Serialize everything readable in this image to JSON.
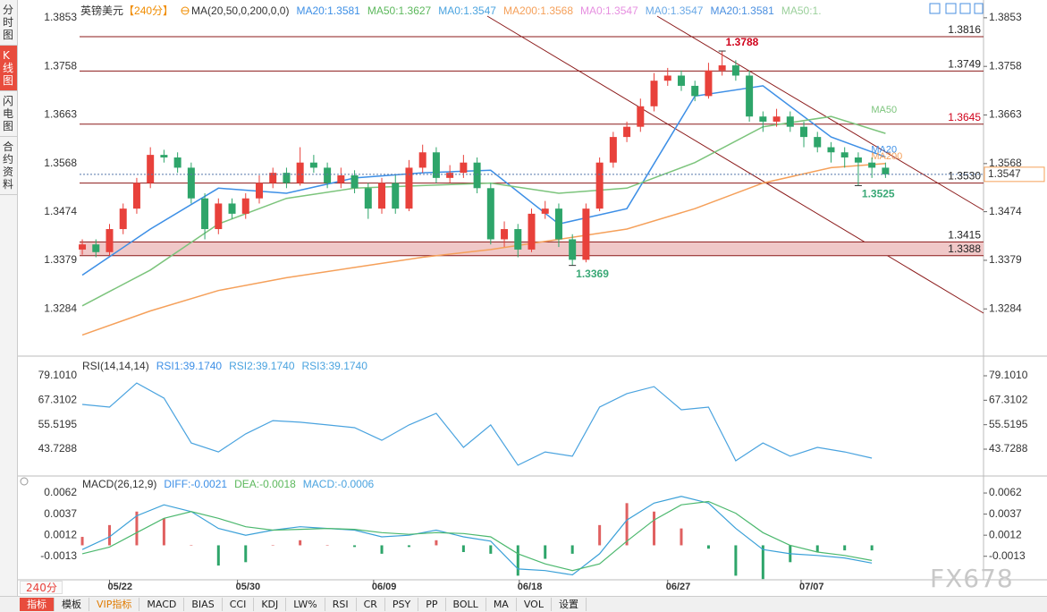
{
  "sidebar": [
    "分时图",
    "K线图",
    "闪电图",
    "合约资料"
  ],
  "chart_data": [
    {
      "type": "candlestick",
      "title": "英镑美元",
      "period": "【240分】",
      "indicator": "MA(20,50,0,200,0,0)",
      "header_items": [
        {
          "text": "MA20:1.3581",
          "color": "#3d8fe6"
        },
        {
          "text": "MA50:1.3627",
          "color": "#5cb85c"
        },
        {
          "text": "MA0:1.3547",
          "color": "#4aa3df"
        },
        {
          "text": "MA200:1.3568",
          "color": "#f5a05a"
        },
        {
          "text": "MA0:1.3547",
          "color": "#e68fe0"
        },
        {
          "text": "MA0:1.3547",
          "color": "#6aa9e6"
        },
        {
          "text": "MA20:1.3581",
          "color": "#4a8fe0"
        },
        {
          "text": "MA50:1.",
          "color": "#9bd09b"
        }
      ],
      "xlim": [
        -0.2,
        66.2
      ],
      "xticks": [
        {
          "value": 2,
          "label": "05/22"
        },
        {
          "value": 11.4,
          "label": "05/30"
        },
        {
          "value": 21.4,
          "label": "06/09"
        },
        {
          "value": 32.1,
          "label": "06/18"
        },
        {
          "value": 43,
          "label": "06/27"
        },
        {
          "value": 52.8,
          "label": "07/07"
        }
      ],
      "ylim": [
        1.3197,
        1.3879
      ],
      "yticks": [
        1.3853,
        1.3758,
        1.3663,
        1.3568,
        1.3474,
        1.3379,
        1.3284
      ],
      "up_color": "#e8413b",
      "down_color": "#2ea56a",
      "candles": {
        "open": [
          1.34,
          1.341,
          1.3395,
          1.344,
          1.348,
          1.353,
          1.3585,
          1.358,
          1.356,
          1.35,
          1.344,
          1.349,
          1.347,
          1.35,
          1.353,
          1.355,
          1.353,
          1.357,
          1.356,
          1.353,
          1.3545,
          1.352,
          1.348,
          1.353,
          1.348,
          1.356,
          1.359,
          1.354,
          1.355,
          1.357,
          1.352,
          1.342,
          1.344,
          1.34,
          1.347,
          1.348,
          1.342,
          1.338,
          1.348,
          1.357,
          1.362,
          1.364,
          1.368,
          1.373,
          1.374,
          1.372,
          1.37,
          1.375,
          1.376,
          1.374,
          1.366,
          1.365,
          1.366,
          1.364,
          1.362,
          1.36,
          1.359,
          1.358,
          1.357,
          1.356
        ],
        "high": [
          1.342,
          1.342,
          1.345,
          1.349,
          1.354,
          1.36,
          1.3595,
          1.359,
          1.357,
          1.351,
          1.35,
          1.35,
          1.351,
          1.3545,
          1.356,
          1.356,
          1.36,
          1.3585,
          1.357,
          1.356,
          1.3555,
          1.353,
          1.354,
          1.3545,
          1.3575,
          1.3605,
          1.36,
          1.3565,
          1.3585,
          1.358,
          1.353,
          1.3455,
          1.345,
          1.348,
          1.3495,
          1.349,
          1.343,
          1.349,
          1.358,
          1.363,
          1.365,
          1.3695,
          1.3745,
          1.3755,
          1.375,
          1.373,
          1.3765,
          1.3788,
          1.377,
          1.375,
          1.367,
          1.3675,
          1.367,
          1.365,
          1.363,
          1.361,
          1.36,
          1.359,
          1.358,
          1.357
        ],
        "low": [
          1.339,
          1.3385,
          1.3388,
          1.343,
          1.347,
          1.352,
          1.357,
          1.355,
          1.349,
          1.342,
          1.343,
          1.346,
          1.346,
          1.349,
          1.352,
          1.352,
          1.3525,
          1.355,
          1.352,
          1.352,
          1.351,
          1.346,
          1.347,
          1.347,
          1.3475,
          1.355,
          1.353,
          1.353,
          1.354,
          1.351,
          1.341,
          1.3405,
          1.3385,
          1.3395,
          1.346,
          1.3405,
          1.3369,
          1.3375,
          1.3475,
          1.356,
          1.361,
          1.363,
          1.367,
          1.372,
          1.371,
          1.369,
          1.3695,
          1.374,
          1.373,
          1.365,
          1.363,
          1.364,
          1.363,
          1.36,
          1.359,
          1.357,
          1.356,
          1.3525,
          1.354,
          1.354
        ],
        "close": [
          1.341,
          1.3395,
          1.344,
          1.348,
          1.353,
          1.3585,
          1.358,
          1.356,
          1.35,
          1.344,
          1.349,
          1.347,
          1.35,
          1.353,
          1.355,
          1.353,
          1.357,
          1.356,
          1.353,
          1.3545,
          1.352,
          1.348,
          1.353,
          1.348,
          1.356,
          1.359,
          1.354,
          1.355,
          1.357,
          1.352,
          1.342,
          1.344,
          1.34,
          1.347,
          1.348,
          1.342,
          1.338,
          1.348,
          1.357,
          1.362,
          1.364,
          1.368,
          1.373,
          1.374,
          1.372,
          1.37,
          1.375,
          1.376,
          1.374,
          1.366,
          1.365,
          1.366,
          1.364,
          1.362,
          1.36,
          1.359,
          1.358,
          1.357,
          1.356,
          1.3547
        ]
      },
      "series": [
        {
          "name": "MA20",
          "color": "#3d8fe6",
          "x": [
            0,
            5,
            10,
            15,
            20,
            25,
            30,
            35,
            40,
            45,
            50,
            55,
            59
          ],
          "values": [
            1.335,
            1.344,
            1.352,
            1.351,
            1.354,
            1.355,
            1.3555,
            1.345,
            1.348,
            1.37,
            1.372,
            1.362,
            1.3581
          ]
        },
        {
          "name": "MA50",
          "color": "#7cc47c",
          "x": [
            0,
            5,
            10,
            15,
            20,
            25,
            30,
            35,
            40,
            45,
            50,
            55,
            59
          ],
          "values": [
            1.329,
            1.336,
            1.345,
            1.35,
            1.352,
            1.3525,
            1.353,
            1.351,
            1.352,
            1.357,
            1.364,
            1.366,
            1.3627
          ]
        },
        {
          "name": "MA200",
          "color": "#f5a05a",
          "x": [
            0,
            5,
            10,
            15,
            20,
            25,
            30,
            35,
            40,
            45,
            50,
            55,
            59
          ],
          "values": [
            1.3233,
            1.328,
            1.332,
            1.3345,
            1.3365,
            1.3385,
            1.34,
            1.342,
            1.344,
            1.348,
            1.353,
            1.356,
            1.3568
          ]
        }
      ],
      "levels": [
        {
          "value": 1.3816,
          "color": "#222222"
        },
        {
          "value": 1.3749,
          "color": "#222222"
        },
        {
          "value": 1.3645,
          "color": "#d0021b"
        },
        {
          "value": 1.353,
          "label": "1.3530",
          "color": "#222222"
        },
        {
          "value": 1.3415,
          "color": "#222222"
        },
        {
          "value": 1.3388,
          "color": "#222222"
        }
      ],
      "level_line_color": "#8b1a1a",
      "zone": [
        1.3388,
        1.3415
      ],
      "zone_color": "#f0c8c8",
      "annotations": [
        {
          "x": 47,
          "value": 1.3788,
          "color": "#d0021b",
          "position": "above"
        },
        {
          "x": 57,
          "value": 1.3525,
          "color": "#3aa876",
          "position": "below"
        },
        {
          "x": 36,
          "value": 1.3369,
          "color": "#3aa876",
          "position": "below"
        }
      ],
      "last_color": "#f5a05a"
    },
    {
      "type": "line",
      "title": "RSI(14,14,14)",
      "header_items": [
        {
          "text": "RSI1:39.1740",
          "color": "#3d8fe6"
        },
        {
          "text": "RSI2:39.1740",
          "color": "#4aa3df"
        },
        {
          "text": "RSI3:39.1740",
          "color": "#4aa3df"
        }
      ],
      "ylim": [
        31.65,
        87.73
      ],
      "yticks": [
        {
          "value": 79.101,
          "label": "79.1010"
        },
        67.3102,
        55.5195,
        43.7288
      ],
      "series": [
        {
          "color": "#4aa3df",
          "x": [
            0,
            2,
            4,
            6,
            8,
            10,
            12,
            14,
            16,
            18,
            20,
            22,
            24,
            26,
            28,
            30,
            32,
            34,
            36,
            38,
            40,
            42,
            44,
            46,
            48,
            50,
            52,
            54,
            56,
            58
          ],
          "values": [
            65.3,
            64,
            75.6,
            68.3,
            46.7,
            42.4,
            51.1,
            57.5,
            56.7,
            55.4,
            54.1,
            48,
            55.4,
            61,
            44.6,
            55.4,
            36,
            42.4,
            40.3,
            64,
            70.5,
            73.9,
            62.7,
            64,
            38.1,
            46.7,
            40.3,
            44.6,
            42.4,
            39.4
          ]
        }
      ]
    },
    {
      "type": "macd",
      "title": "MACD(26,12,9)",
      "header_items": [
        {
          "text": "DIFF:-0.0021",
          "color": "#3d8fe6"
        },
        {
          "text": "DEA:-0.0018",
          "color": "#5cb85c"
        },
        {
          "text": "MACD:-0.0006",
          "color": "#4aa3df"
        }
      ],
      "ylim": [
        -0.0043,
        0.0079
      ],
      "yticks": [
        0.0062,
        0.0037,
        0.0012,
        -0.0013
      ],
      "series": [
        {
          "color": "#3aa0d8",
          "x": [
            0,
            2,
            4,
            6,
            8,
            10,
            12,
            14,
            16,
            18,
            20,
            22,
            24,
            26,
            28,
            30,
            32,
            34,
            36,
            38,
            40,
            42,
            44,
            46,
            48,
            50,
            52,
            54,
            56,
            58
          ],
          "values": [
            -0.0005,
            0.001,
            0.0035,
            0.0048,
            0.004,
            0.002,
            0.0012,
            0.0018,
            0.0022,
            0.002,
            0.0018,
            0.001,
            0.0012,
            0.0018,
            0.001,
            0.0005,
            -0.0028,
            -0.003,
            -0.0035,
            -0.001,
            0.003,
            0.005,
            0.0058,
            0.005,
            0.002,
            -0.0005,
            -0.001,
            -0.0012,
            -0.0015,
            -0.0021
          ]
        },
        {
          "color": "#4cb86e",
          "x": [
            0,
            2,
            4,
            6,
            8,
            10,
            12,
            14,
            16,
            18,
            20,
            22,
            24,
            26,
            28,
            30,
            32,
            34,
            36,
            38,
            40,
            42,
            44,
            46,
            48,
            50,
            52,
            54,
            56,
            58
          ],
          "values": [
            -0.001,
            -0.0002,
            0.0015,
            0.0032,
            0.004,
            0.0032,
            0.0022,
            0.0018,
            0.0019,
            0.002,
            0.0019,
            0.0015,
            0.0013,
            0.0015,
            0.0014,
            0.001,
            -0.001,
            -0.0022,
            -0.003,
            -0.0022,
            0.0005,
            0.003,
            0.0048,
            0.0052,
            0.0038,
            0.0015,
            0.0,
            -0.0008,
            -0.0012,
            -0.0018
          ]
        }
      ],
      "histogram": {
        "up_color": "#e06060",
        "down_color": "#2ea56a",
        "x": [
          0,
          2,
          4,
          6,
          8,
          10,
          12,
          14,
          16,
          18,
          20,
          22,
          24,
          26,
          28,
          30,
          32,
          34,
          36,
          38,
          40,
          42,
          44,
          46,
          48,
          50,
          52,
          54,
          56,
          58
        ],
        "values": [
          0.001,
          0.0024,
          0.004,
          0.0032,
          0,
          -0.0024,
          -0.002,
          0,
          0.0006,
          0,
          -0.0002,
          -0.001,
          -0.0002,
          0.0006,
          -0.0008,
          -0.001,
          -0.0036,
          -0.0016,
          -0.001,
          0.0024,
          0.005,
          0.004,
          0.002,
          -0.0004,
          -0.0036,
          -0.004,
          -0.002,
          -0.0008,
          -0.0006,
          -0.0006
        ]
      }
    }
  ],
  "toolbar": {
    "period": "240分",
    "tabs": [
      "指标",
      "模板",
      "VIP指标",
      "MACD",
      "BIAS",
      "CCI",
      "KDJ",
      "LW%",
      "RSI",
      "CR",
      "PSY",
      "PP",
      "BOLL",
      "MA",
      "VOL",
      "设置"
    ]
  },
  "watermark": "FX678"
}
